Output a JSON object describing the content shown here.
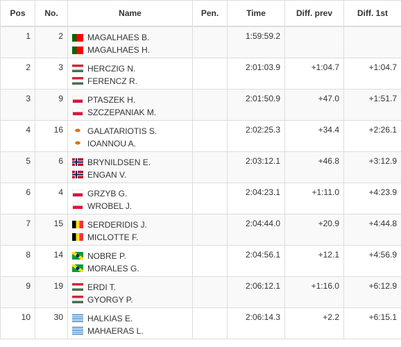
{
  "table": {
    "headers": [
      "Pos",
      "No.",
      "Name",
      "Pen.",
      "Time",
      "Diff. prev",
      "Diff. 1st"
    ],
    "rows": [
      {
        "pos": 1,
        "no": 2,
        "drivers": [
          "MAGALHAES B.",
          "MAGALHAES H."
        ],
        "time": "1:59:59.2"
      },
      {
        "pos": 2,
        "no": 3,
        "drivers": [
          "HERCZIG N.",
          "FERENCZ R."
        ],
        "time": "2:01:03.9",
        "diff_prev": "+1:04.7",
        "diff_first": "+1:04.7"
      },
      {
        "pos": 3,
        "no": 9,
        "drivers": [
          "PTASZEK H.",
          "SZCZEPANIAK M."
        ],
        "time": "2:01:50.9",
        "diff_prev": "+47.0",
        "diff_first": "+1:51.7"
      },
      {
        "pos": 4,
        "no": 16,
        "drivers": [
          "GALATARIOTIS S.",
          "IOANNOU A."
        ],
        "time": "2:02:25.3",
        "diff_prev": "+34.4",
        "diff_first": "+2:26.1"
      },
      {
        "pos": 5,
        "no": 6,
        "drivers": [
          "BRYNILDSEN E.",
          "ENGAN V."
        ],
        "time": "2:03:12.1",
        "diff_prev": "+46.8",
        "diff_first": "+3:12.9"
      },
      {
        "pos": 6,
        "no": 4,
        "drivers": [
          "GRZYB G.",
          "WROBEL J."
        ],
        "time": "2:04:23.1",
        "diff_prev": "+1:11.0",
        "diff_first": "+4:23.9"
      },
      {
        "pos": 7,
        "no": 15,
        "drivers": [
          "SERDERIDIS J.",
          "MICLOTTE F."
        ],
        "time": "2:04:44.0",
        "diff_prev": "+20.9",
        "diff_first": "+4:44.8"
      },
      {
        "pos": 8,
        "no": 14,
        "drivers": [
          "NOBRE P.",
          "MORALES G."
        ],
        "time": "2:04:56.1",
        "diff_prev": "+12.1",
        "diff_first": "+4:56.9"
      },
      {
        "pos": 9,
        "no": 19,
        "drivers": [
          "ERDI T.",
          "GYORGY P."
        ],
        "time": "2:06:12.1",
        "diff_prev": "+1:16.0",
        "diff_first": "+6:12.9"
      },
      {
        "pos": 10,
        "no": 30,
        "drivers": [
          "HALKIAS E.",
          "MAHAERAS L."
        ],
        "time": "2:06:14.3",
        "diff_prev": "+2.2",
        "diff_first": "+6:15.1"
      }
    ]
  }
}
